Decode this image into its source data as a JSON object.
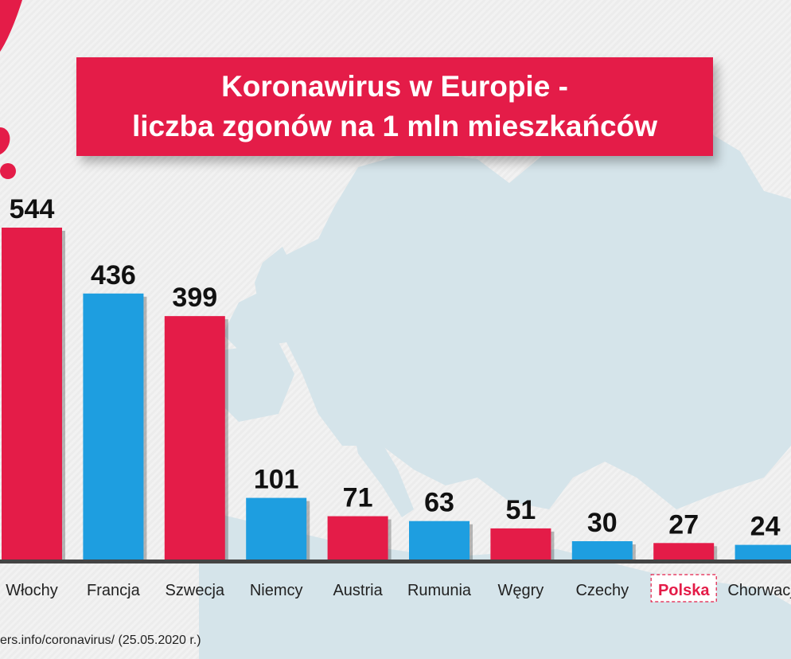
{
  "title": {
    "line1": "Koronawirus w Europie -",
    "line2": "liczba zgonów na 1 mln mieszkańców"
  },
  "source": "ers.info/coronavirus/ (25.05.2020 r.)",
  "colors": {
    "red": "#e41c48",
    "blue": "#1e9ee0",
    "axis": "#444444",
    "map": "#d5e4ea"
  },
  "chart_data": {
    "type": "bar",
    "title": "Koronawirus w Europie - liczba zgonów na 1 mln mieszkańców",
    "xlabel": "",
    "ylabel": "",
    "ylim": [
      0,
      544
    ],
    "grid": false,
    "categories": [
      "Włochy",
      "Francja",
      "Szwecja",
      "Niemcy",
      "Austria",
      "Rumunia",
      "Węgry",
      "Czechy",
      "Polska",
      "Chorwacja"
    ],
    "values": [
      544,
      436,
      399,
      101,
      71,
      63,
      51,
      30,
      27,
      24
    ],
    "bar_colors": [
      "red",
      "blue",
      "red",
      "blue",
      "red",
      "blue",
      "red",
      "blue",
      "red",
      "blue"
    ],
    "highlighted": "Polska"
  }
}
